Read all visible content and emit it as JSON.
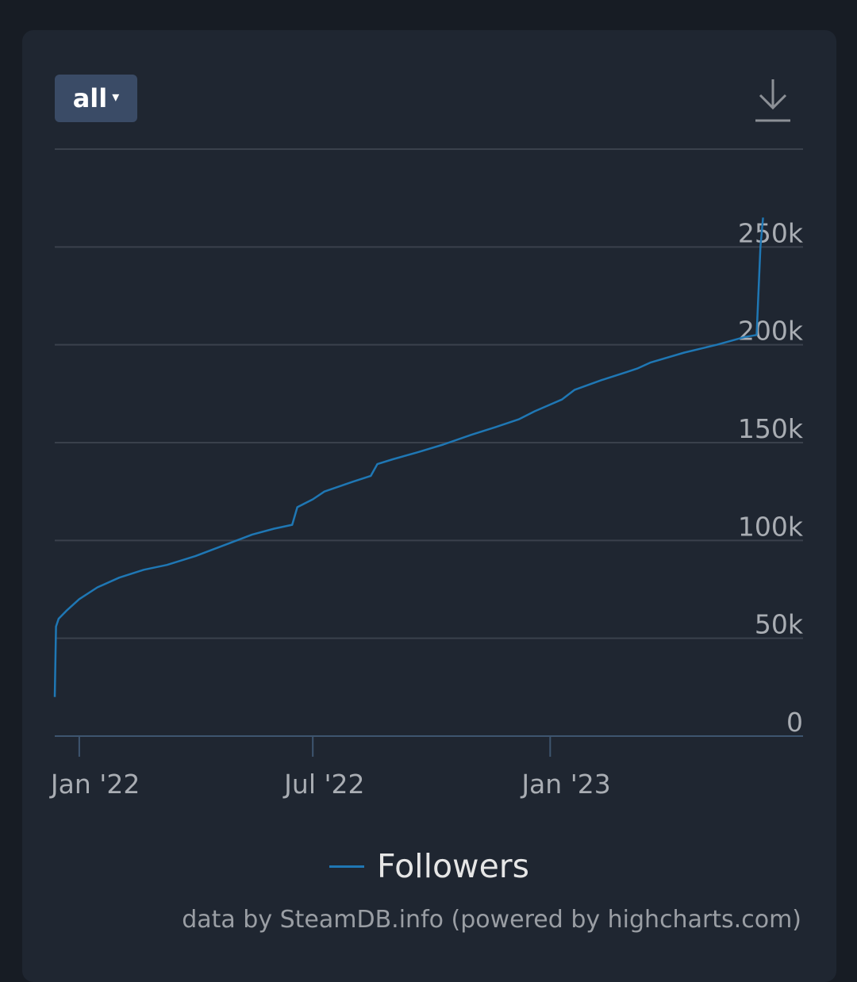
{
  "toolbar": {
    "range_label": "all",
    "caret_glyph": "▾",
    "download_icon": "download-icon"
  },
  "legend": {
    "label": "Followers"
  },
  "credits": "data by SteamDB.info (powered by highcharts.com)",
  "colors": {
    "series": "#1f77b4",
    "grid": "#3a414c",
    "axis": "#3e556f",
    "text": "#a9adb3"
  },
  "chart_data": {
    "type": "line",
    "title": "",
    "xlabel": "",
    "ylabel": "",
    "ylim": [
      0,
      300000
    ],
    "yticks": [
      {
        "value": 0,
        "label": "0"
      },
      {
        "value": 50000,
        "label": "50k"
      },
      {
        "value": 100000,
        "label": "100k"
      },
      {
        "value": 150000,
        "label": "150k"
      },
      {
        "value": 200000,
        "label": "200k"
      },
      {
        "value": 250000,
        "label": "250k"
      }
    ],
    "xlim": [
      "2021-12-13",
      "2023-07-16"
    ],
    "xticks": [
      {
        "value": "2022-01-01",
        "label": "Jan '22"
      },
      {
        "value": "2022-07-01",
        "label": "Jul '22"
      },
      {
        "value": "2023-01-01",
        "label": "Jan '23"
      }
    ],
    "grid": true,
    "legend_position": "bottom-center",
    "series": [
      {
        "name": "Followers",
        "points": [
          [
            "2021-12-13",
            20000
          ],
          [
            "2021-12-14",
            56000
          ],
          [
            "2021-12-16",
            60000
          ],
          [
            "2021-12-22",
            64000
          ],
          [
            "2022-01-01",
            70000
          ],
          [
            "2022-01-15",
            76000
          ],
          [
            "2022-02-01",
            81000
          ],
          [
            "2022-02-20",
            85000
          ],
          [
            "2022-03-10",
            87500
          ],
          [
            "2022-04-01",
            92000
          ],
          [
            "2022-04-25",
            98000
          ],
          [
            "2022-05-15",
            103000
          ],
          [
            "2022-06-01",
            106000
          ],
          [
            "2022-06-15",
            108000
          ],
          [
            "2022-06-19",
            117000
          ],
          [
            "2022-07-01",
            121000
          ],
          [
            "2022-07-10",
            125000
          ],
          [
            "2022-08-01",
            130000
          ],
          [
            "2022-08-15",
            133000
          ],
          [
            "2022-08-20",
            139000
          ],
          [
            "2022-09-01",
            141500
          ],
          [
            "2022-09-20",
            145000
          ],
          [
            "2022-10-10",
            149000
          ],
          [
            "2022-11-01",
            154000
          ],
          [
            "2022-11-20",
            158000
          ],
          [
            "2022-12-08",
            162000
          ],
          [
            "2022-12-20",
            166000
          ],
          [
            "2023-01-10",
            172000
          ],
          [
            "2023-01-20",
            177000
          ],
          [
            "2023-02-10",
            182000
          ],
          [
            "2023-03-01",
            186000
          ],
          [
            "2023-03-10",
            188000
          ],
          [
            "2023-03-20",
            191000
          ],
          [
            "2023-04-15",
            196000
          ],
          [
            "2023-05-10",
            200000
          ],
          [
            "2023-06-01",
            204000
          ],
          [
            "2023-06-10",
            205000
          ],
          [
            "2023-06-13",
            250000
          ],
          [
            "2023-06-15",
            265000
          ]
        ]
      }
    ]
  }
}
